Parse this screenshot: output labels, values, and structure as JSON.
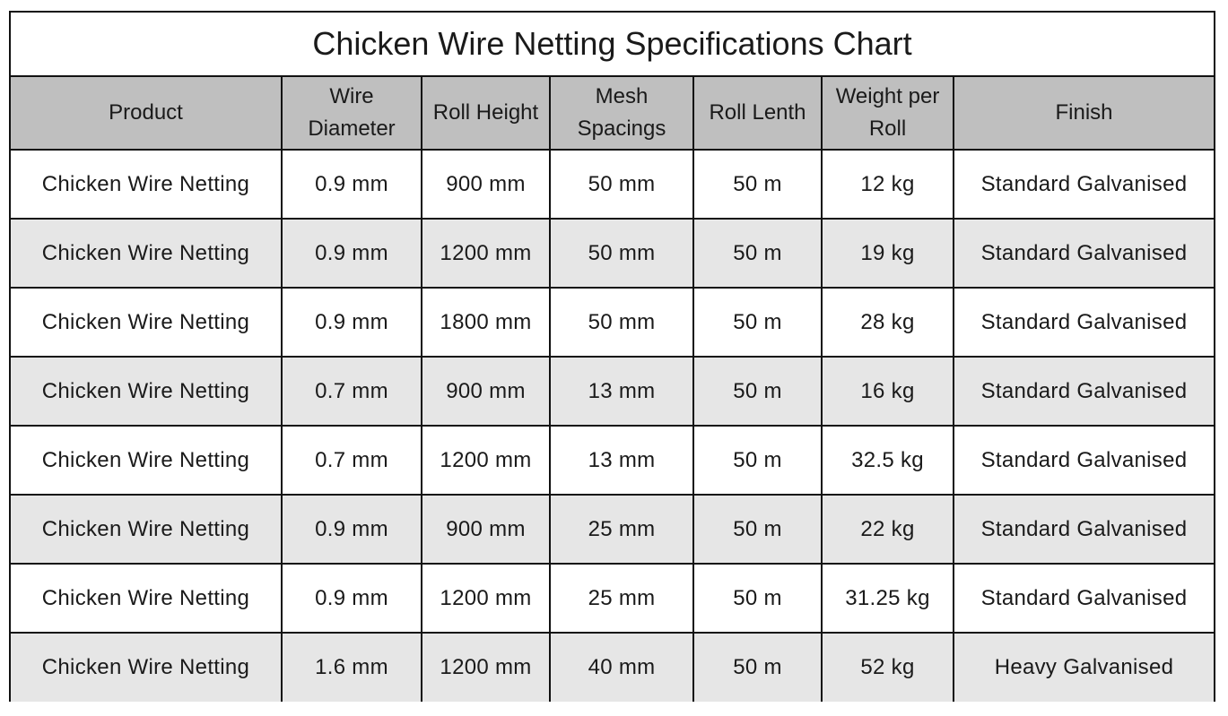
{
  "title": "Chicken Wire Netting Specifications Chart",
  "headers": {
    "product": "Product",
    "wire_diameter": "Wire Diameter",
    "roll_height": "Roll Height",
    "mesh_spacings": "Mesh Spacings",
    "roll_length": "Roll Lenth",
    "weight_per_roll": "Weight per Roll",
    "finish": "Finish"
  },
  "rows": [
    {
      "product": "Chicken Wire Netting",
      "wire_diameter": "0.9 mm",
      "roll_height": "900 mm",
      "mesh_spacings": "50 mm",
      "roll_length": "50 m",
      "weight_per_roll": "12 kg",
      "finish": "Standard Galvanised"
    },
    {
      "product": "Chicken Wire Netting",
      "wire_diameter": "0.9 mm",
      "roll_height": "1200 mm",
      "mesh_spacings": "50 mm",
      "roll_length": "50 m",
      "weight_per_roll": "19 kg",
      "finish": "Standard Galvanised"
    },
    {
      "product": "Chicken Wire Netting",
      "wire_diameter": "0.9 mm",
      "roll_height": "1800 mm",
      "mesh_spacings": "50 mm",
      "roll_length": "50 m",
      "weight_per_roll": "28 kg",
      "finish": "Standard Galvanised"
    },
    {
      "product": "Chicken Wire Netting",
      "wire_diameter": "0.7 mm",
      "roll_height": "900 mm",
      "mesh_spacings": "13 mm",
      "roll_length": "50 m",
      "weight_per_roll": "16 kg",
      "finish": "Standard Galvanised"
    },
    {
      "product": "Chicken Wire Netting",
      "wire_diameter": "0.7 mm",
      "roll_height": "1200 mm",
      "mesh_spacings": "13 mm",
      "roll_length": "50 m",
      "weight_per_roll": "32.5 kg",
      "finish": "Standard Galvanised"
    },
    {
      "product": "Chicken Wire Netting",
      "wire_diameter": "0.9 mm",
      "roll_height": "900 mm",
      "mesh_spacings": "25 mm",
      "roll_length": "50 m",
      "weight_per_roll": "22 kg",
      "finish": "Standard Galvanised"
    },
    {
      "product": "Chicken Wire Netting",
      "wire_diameter": "0.9 mm",
      "roll_height": "1200 mm",
      "mesh_spacings": "25 mm",
      "roll_length": "50 m",
      "weight_per_roll": "31.25 kg",
      "finish": "Standard Galvanised"
    },
    {
      "product": "Chicken Wire Netting",
      "wire_diameter": "1.6 mm",
      "roll_height": "1200 mm",
      "mesh_spacings": "40 mm",
      "roll_length": "50 m",
      "weight_per_roll": "52 kg",
      "finish": "Heavy Galvanised"
    }
  ],
  "colors": {
    "header_bg": "#bfbfbf",
    "alt_row_bg": "#e6e6e6",
    "row_bg": "#ffffff",
    "border": "#111111"
  }
}
